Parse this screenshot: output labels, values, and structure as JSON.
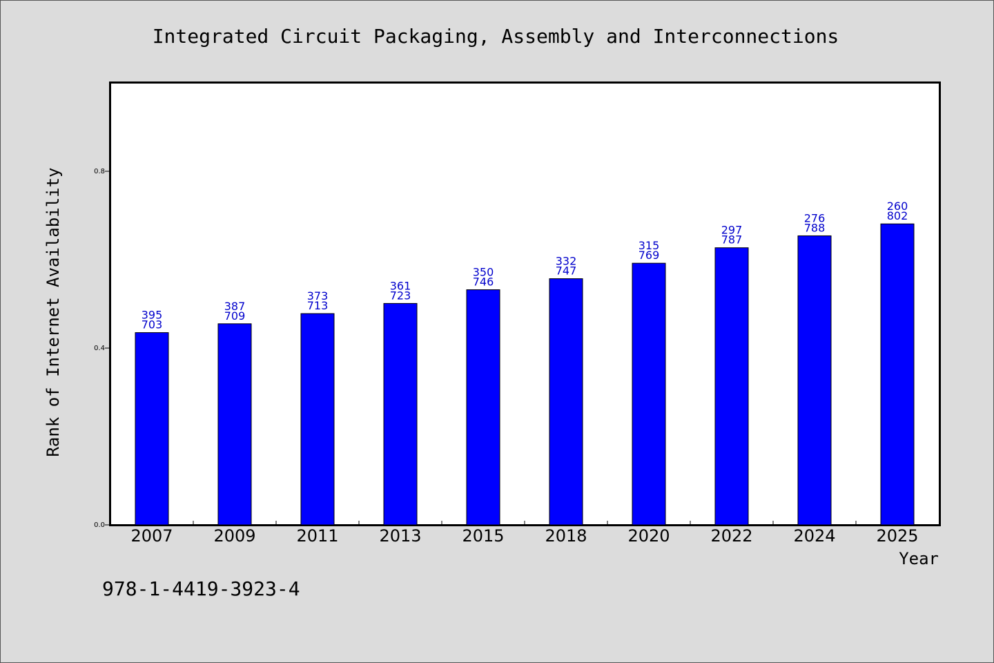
{
  "chart_data": {
    "type": "bar",
    "title": "Integrated Circuit Packaging, Assembly and Interconnections",
    "xlabel": "Year",
    "ylabel": "Rank of Internet Availability",
    "categories": [
      "2007",
      "2009",
      "2011",
      "2013",
      "2015",
      "2018",
      "2020",
      "2022",
      "2024",
      "2025"
    ],
    "values": [
      0.435,
      0.455,
      0.478,
      0.501,
      0.532,
      0.557,
      0.592,
      0.627,
      0.654,
      0.681
    ],
    "labels_top": [
      "395",
      "387",
      "373",
      "361",
      "350",
      "332",
      "315",
      "297",
      "276",
      "260"
    ],
    "labels_bottom": [
      "703",
      "709",
      "713",
      "723",
      "746",
      "747",
      "769",
      "787",
      "788",
      "802"
    ],
    "yticks": [
      "0.0",
      "0.4",
      "0.8"
    ],
    "ylim": [
      0,
      1.0
    ],
    "grid": false,
    "colors": {
      "bar": "#0000ff",
      "label": "#0000cc",
      "background": "#dcdcdc",
      "plot_bg": "#ffffff"
    }
  },
  "footer": {
    "isbn": "978-1-4419-3923-4"
  }
}
